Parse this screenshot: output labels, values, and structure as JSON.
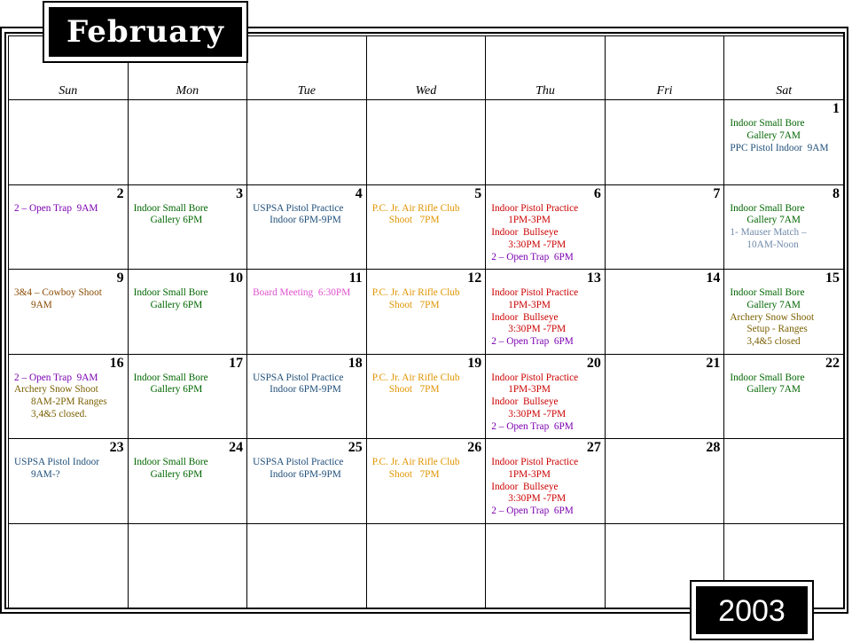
{
  "month": "February",
  "year": "2003",
  "weekdays": [
    "Sun",
    "Mon",
    "Tue",
    "Wed",
    "Thu",
    "Fri",
    "Sat"
  ],
  "colors": {
    "green": "#006600",
    "blue": "#1f4f7a",
    "purple": "#7b00b0",
    "orange": "#e09400",
    "red": "#cc0000",
    "brown": "#8a4a00",
    "olive": "#7a6000",
    "pink": "#e050d0",
    "slate": "#6f8aaa"
  },
  "weeks": [
    [
      {
        "day": "",
        "events": []
      },
      {
        "day": "",
        "events": []
      },
      {
        "day": "",
        "events": []
      },
      {
        "day": "",
        "events": []
      },
      {
        "day": "",
        "events": []
      },
      {
        "day": "",
        "events": []
      },
      {
        "day": "1",
        "events": [
          {
            "text": "Indoor Small Bore",
            "color": "green"
          },
          {
            "text": "Gallery 7AM",
            "color": "green",
            "indent": true
          },
          {
            "text": "PPC Pistol Indoor  9AM",
            "color": "blue"
          }
        ]
      }
    ],
    [
      {
        "day": "2",
        "events": [
          {
            "text": "2 – Open Trap  9AM",
            "color": "purple"
          }
        ]
      },
      {
        "day": "3",
        "events": [
          {
            "text": "Indoor Small Bore",
            "color": "green"
          },
          {
            "text": "Gallery 6PM",
            "color": "green",
            "indent": true
          }
        ]
      },
      {
        "day": "4",
        "events": [
          {
            "text": "USPSA Pistol Practice",
            "color": "blue"
          },
          {
            "text": "Indoor 6PM-9PM",
            "color": "blue",
            "indent": true
          }
        ]
      },
      {
        "day": "5",
        "events": [
          {
            "text": "P.C. Jr. Air Rifle Club",
            "color": "orange"
          },
          {
            "text": "Shoot   7PM",
            "color": "orange",
            "indent": true
          }
        ]
      },
      {
        "day": "6",
        "events": [
          {
            "text": "Indoor Pistol Practice",
            "color": "red"
          },
          {
            "text": "1PM-3PM",
            "color": "red",
            "indent": true
          },
          {
            "text": "Indoor  Bullseye",
            "color": "red"
          },
          {
            "text": "3:30PM -7PM",
            "color": "red",
            "indent": true
          },
          {
            "text": "2 – Open Trap  6PM",
            "color": "purple"
          }
        ]
      },
      {
        "day": "7",
        "events": []
      },
      {
        "day": "8",
        "events": [
          {
            "text": "Indoor Small Bore",
            "color": "green"
          },
          {
            "text": "Gallery 7AM",
            "color": "green",
            "indent": true
          },
          {
            "text": "1- Mauser Match –",
            "color": "slate"
          },
          {
            "text": "10AM-Noon",
            "color": "slate",
            "indent": true
          }
        ]
      }
    ],
    [
      {
        "day": "9",
        "events": [
          {
            "text": "3&4 – Cowboy Shoot",
            "color": "brown"
          },
          {
            "text": "9AM",
            "color": "brown",
            "indent": true
          }
        ]
      },
      {
        "day": "10",
        "events": [
          {
            "text": "Indoor Small Bore",
            "color": "green"
          },
          {
            "text": "Gallery 6PM",
            "color": "green",
            "indent": true
          }
        ]
      },
      {
        "day": "11",
        "events": [
          {
            "text": "Board Meeting  6:30PM",
            "color": "pink"
          }
        ]
      },
      {
        "day": "12",
        "events": [
          {
            "text": "P.C. Jr. Air Rifle Club",
            "color": "orange"
          },
          {
            "text": "Shoot   7PM",
            "color": "orange",
            "indent": true
          }
        ]
      },
      {
        "day": "13",
        "events": [
          {
            "text": "Indoor Pistol Practice",
            "color": "red"
          },
          {
            "text": "1PM-3PM",
            "color": "red",
            "indent": true
          },
          {
            "text": "Indoor  Bullseye",
            "color": "red"
          },
          {
            "text": "3:30PM -7PM",
            "color": "red",
            "indent": true
          },
          {
            "text": "2 – Open Trap  6PM",
            "color": "purple"
          }
        ]
      },
      {
        "day": "14",
        "events": []
      },
      {
        "day": "15",
        "events": [
          {
            "text": "Indoor Small Bore",
            "color": "green"
          },
          {
            "text": "Gallery 7AM",
            "color": "green",
            "indent": true
          },
          {
            "text": "Archery Snow Shoot",
            "color": "olive"
          },
          {
            "text": "Setup - Ranges",
            "color": "olive",
            "indent": true
          },
          {
            "text": "3,4&5 closed",
            "color": "olive",
            "indent": true
          }
        ]
      }
    ],
    [
      {
        "day": "16",
        "events": [
          {
            "text": "2 – Open Trap  9AM",
            "color": "purple"
          },
          {
            "text": "Archery Snow Shoot",
            "color": "olive"
          },
          {
            "text": "8AM-2PM Ranges",
            "color": "olive",
            "indent": true
          },
          {
            "text": "3,4&5 closed.",
            "color": "olive",
            "indent": true
          }
        ]
      },
      {
        "day": "17",
        "events": [
          {
            "text": "Indoor Small Bore",
            "color": "green"
          },
          {
            "text": "Gallery 6PM",
            "color": "green",
            "indent": true
          }
        ]
      },
      {
        "day": "18",
        "events": [
          {
            "text": "USPSA Pistol Practice",
            "color": "blue"
          },
          {
            "text": "Indoor 6PM-9PM",
            "color": "blue",
            "indent": true
          }
        ]
      },
      {
        "day": "19",
        "events": [
          {
            "text": "P.C. Jr. Air Rifle Club",
            "color": "orange"
          },
          {
            "text": "Shoot   7PM",
            "color": "orange",
            "indent": true
          }
        ]
      },
      {
        "day": "20",
        "events": [
          {
            "text": "Indoor Pistol Practice",
            "color": "red"
          },
          {
            "text": "1PM-3PM",
            "color": "red",
            "indent": true
          },
          {
            "text": "Indoor  Bullseye",
            "color": "red"
          },
          {
            "text": "3:30PM -7PM",
            "color": "red",
            "indent": true
          },
          {
            "text": "2 – Open Trap  6PM",
            "color": "purple"
          }
        ]
      },
      {
        "day": "21",
        "events": []
      },
      {
        "day": "22",
        "events": [
          {
            "text": "Indoor Small Bore",
            "color": "green"
          },
          {
            "text": "Gallery 7AM",
            "color": "green",
            "indent": true
          }
        ]
      }
    ],
    [
      {
        "day": "23",
        "events": [
          {
            "text": "USPSA Pistol Indoor",
            "color": "blue"
          },
          {
            "text": "9AM-?",
            "color": "blue",
            "indent": true
          }
        ]
      },
      {
        "day": "24",
        "events": [
          {
            "text": "Indoor Small Bore",
            "color": "green"
          },
          {
            "text": "Gallery 6PM",
            "color": "green",
            "indent": true
          }
        ]
      },
      {
        "day": "25",
        "events": [
          {
            "text": "USPSA Pistol Practice",
            "color": "blue"
          },
          {
            "text": "Indoor 6PM-9PM",
            "color": "blue",
            "indent": true
          }
        ]
      },
      {
        "day": "26",
        "events": [
          {
            "text": "P.C. Jr. Air Rifle Club",
            "color": "orange"
          },
          {
            "text": "Shoot   7PM",
            "color": "orange",
            "indent": true
          }
        ]
      },
      {
        "day": "27",
        "events": [
          {
            "text": "Indoor Pistol Practice",
            "color": "red"
          },
          {
            "text": "1PM-3PM",
            "color": "red",
            "indent": true
          },
          {
            "text": "Indoor  Bullseye",
            "color": "red"
          },
          {
            "text": "3:30PM -7PM",
            "color": "red",
            "indent": true
          },
          {
            "text": "2 – Open Trap  6PM",
            "color": "purple"
          }
        ]
      },
      {
        "day": "28",
        "events": []
      },
      {
        "day": "",
        "events": []
      }
    ],
    [
      {
        "day": "",
        "events": []
      },
      {
        "day": "",
        "events": []
      },
      {
        "day": "",
        "events": []
      },
      {
        "day": "",
        "events": []
      },
      {
        "day": "",
        "events": []
      },
      {
        "day": "",
        "events": []
      },
      {
        "day": "",
        "events": []
      }
    ]
  ]
}
